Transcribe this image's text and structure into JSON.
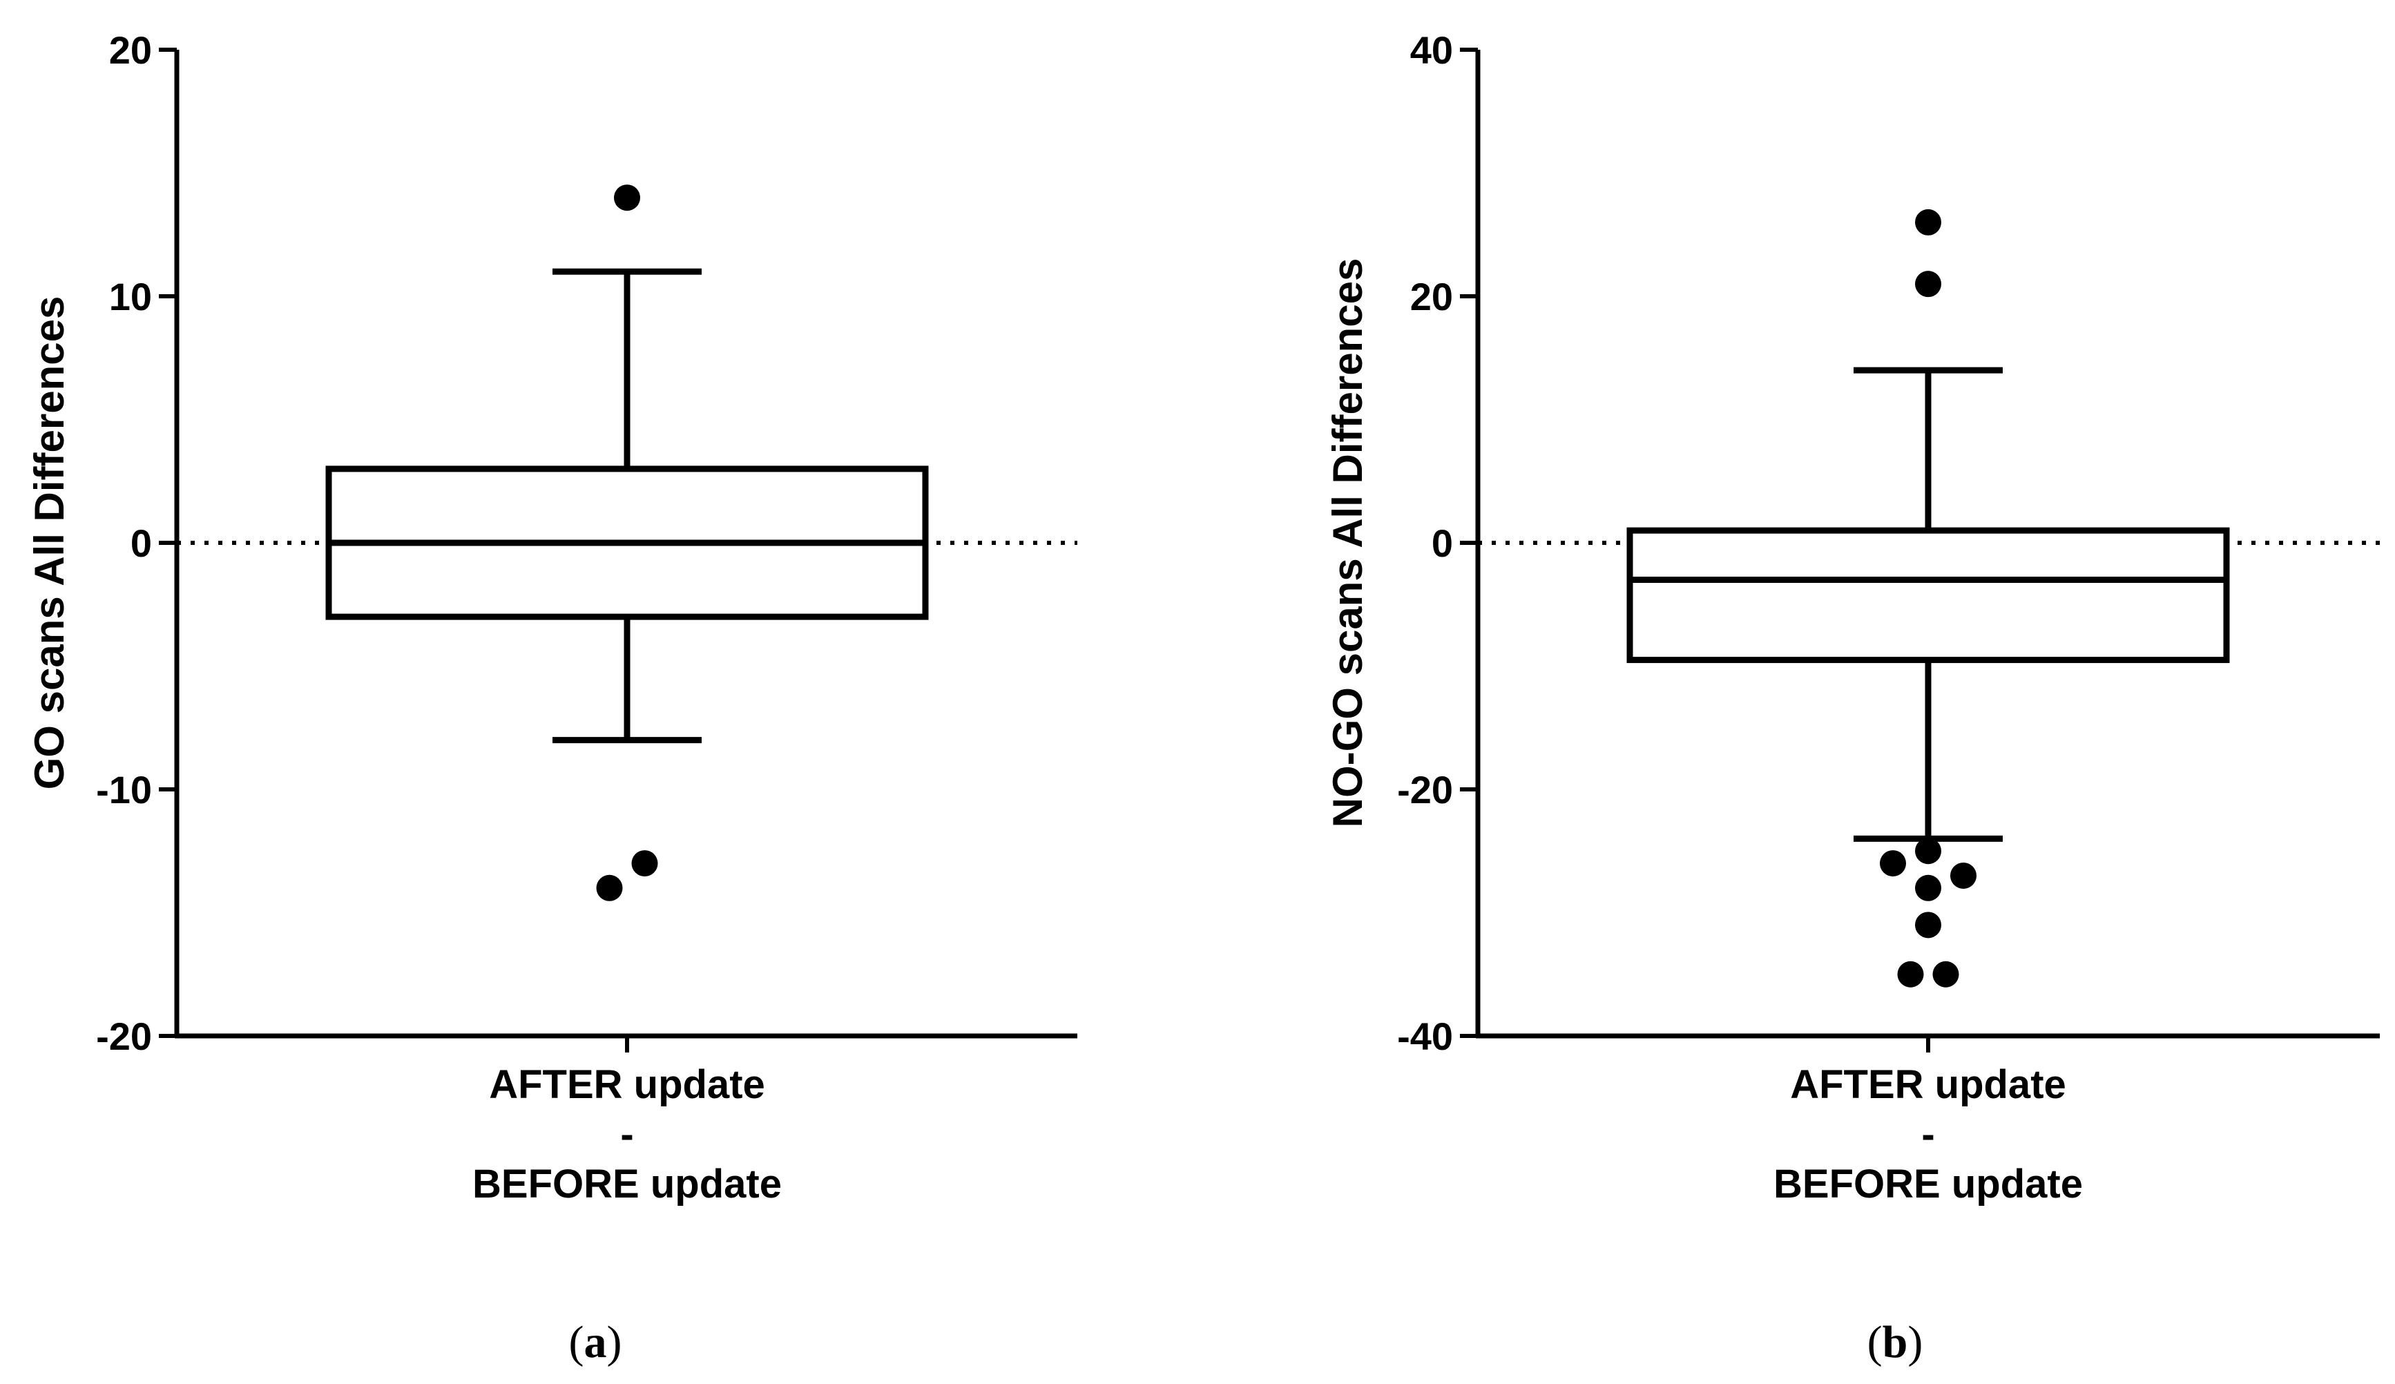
{
  "chart_data": [
    {
      "type": "box",
      "panel_label": {
        "open": "(",
        "letter": "a",
        "close": ")"
      },
      "ylabel": "GO scans All Differences",
      "ylim": [
        -20,
        20
      ],
      "yticks": [
        20,
        10,
        0,
        -10,
        -20
      ],
      "ytick_labels": [
        "20",
        "10",
        "0",
        "-10",
        "-20"
      ],
      "category_lines": [
        "AFTER update",
        "-",
        "BEFORE update"
      ],
      "reference_line": 0,
      "box": {
        "whisker_low": -8,
        "q1": -3,
        "median": 0,
        "q3": 3,
        "whisker_high": 11
      },
      "outliers": [
        {
          "value": 14,
          "offset": 0
        },
        {
          "value": -13,
          "offset": 0.15
        },
        {
          "value": -14,
          "offset": -0.15
        }
      ]
    },
    {
      "type": "box",
      "panel_label": {
        "open": "(",
        "letter": "b",
        "close": ")"
      },
      "ylabel": "NO-GO scans All Differences",
      "ylim": [
        -40,
        40
      ],
      "yticks": [
        40,
        20,
        0,
        -20,
        -40
      ],
      "ytick_labels": [
        "40",
        "20",
        "0",
        "-20",
        "-40"
      ],
      "category_lines": [
        "AFTER update",
        "-",
        "BEFORE update"
      ],
      "reference_line": 0,
      "box": {
        "whisker_low": -24,
        "q1": -9.5,
        "median": -3,
        "q3": 1,
        "whisker_high": 14
      },
      "outliers": [
        {
          "value": 26,
          "offset": 0
        },
        {
          "value": 21,
          "offset": 0
        },
        {
          "value": -25,
          "offset": 0
        },
        {
          "value": -26,
          "offset": -0.3
        },
        {
          "value": -27,
          "offset": 0.3
        },
        {
          "value": -28,
          "offset": 0
        },
        {
          "value": -31,
          "offset": 0
        },
        {
          "value": -35,
          "offset": -0.15
        },
        {
          "value": -35,
          "offset": 0.15
        }
      ]
    }
  ]
}
